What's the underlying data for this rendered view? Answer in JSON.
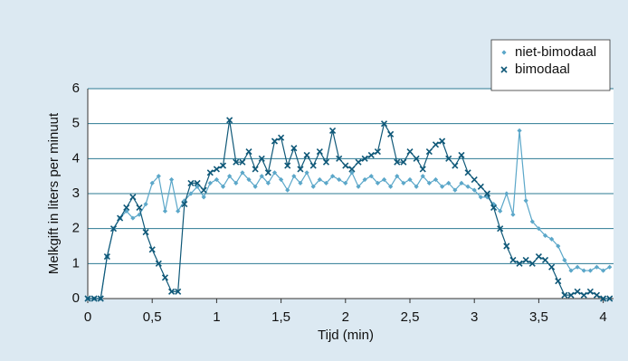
{
  "chart_data": {
    "type": "line",
    "x_label": "Tijd (min)",
    "y_label": "Melkgift in liters per minuut",
    "x": [
      0,
      0.05,
      0.1,
      0.15,
      0.2,
      0.25,
      0.3,
      0.35,
      0.4,
      0.45,
      0.5,
      0.55,
      0.6,
      0.65,
      0.7,
      0.75,
      0.8,
      0.85,
      0.9,
      0.95,
      1,
      1.05,
      1.1,
      1.15,
      1.2,
      1.25,
      1.3,
      1.35,
      1.4,
      1.45,
      1.5,
      1.55,
      1.6,
      1.65,
      1.7,
      1.75,
      1.8,
      1.85,
      1.9,
      1.95,
      2,
      2.05,
      2.1,
      2.15,
      2.2,
      2.25,
      2.3,
      2.35,
      2.4,
      2.45,
      2.5,
      2.55,
      2.6,
      2.65,
      2.7,
      2.75,
      2.8,
      2.85,
      2.9,
      2.95,
      3,
      3.05,
      3.1,
      3.15,
      3.2,
      3.25,
      3.3,
      3.35,
      3.4,
      3.45,
      3.5,
      3.55,
      3.6,
      3.65,
      3.7,
      3.75,
      3.8,
      3.85,
      3.9,
      3.95,
      4,
      4.05
    ],
    "series": [
      {
        "name": "niet-bimodaal",
        "color": "#5ba7c9",
        "marker": "diamond",
        "values": [
          0,
          0,
          0,
          1.2,
          2.0,
          2.3,
          2.5,
          2.3,
          2.4,
          2.7,
          3.3,
          3.5,
          2.5,
          3.4,
          2.5,
          2.8,
          3.0,
          3.2,
          2.9,
          3.3,
          3.4,
          3.2,
          3.5,
          3.3,
          3.6,
          3.4,
          3.2,
          3.5,
          3.3,
          3.6,
          3.4,
          3.1,
          3.5,
          3.3,
          3.6,
          3.2,
          3.4,
          3.3,
          3.5,
          3.4,
          3.3,
          3.6,
          3.2,
          3.4,
          3.5,
          3.3,
          3.4,
          3.2,
          3.5,
          3.3,
          3.4,
          3.2,
          3.5,
          3.3,
          3.4,
          3.2,
          3.3,
          3.1,
          3.3,
          3.2,
          3.1,
          2.9,
          2.9,
          2.7,
          2.5,
          3.0,
          2.4,
          4.8,
          2.8,
          2.2,
          2.0,
          1.8,
          1.7,
          1.5,
          1.1,
          0.8,
          0.9,
          0.8,
          0.8,
          0.9,
          0.8,
          0.9
        ]
      },
      {
        "name": "bimodaal",
        "color": "#0f5878",
        "marker": "x",
        "values": [
          0,
          0,
          0,
          1.2,
          2.0,
          2.3,
          2.6,
          2.9,
          2.6,
          1.9,
          1.4,
          1.0,
          0.6,
          0.2,
          0.2,
          2.7,
          3.3,
          3.3,
          3.1,
          3.6,
          3.7,
          3.8,
          5.1,
          3.9,
          3.9,
          4.2,
          3.7,
          4.0,
          3.6,
          4.5,
          4.6,
          3.8,
          4.3,
          3.7,
          4.1,
          3.8,
          4.2,
          3.9,
          4.8,
          4.0,
          3.8,
          3.7,
          3.9,
          4.0,
          4.1,
          4.2,
          5.0,
          4.7,
          3.9,
          3.9,
          4.2,
          4.0,
          3.7,
          4.2,
          4.4,
          4.5,
          4.0,
          3.8,
          4.1,
          3.6,
          3.4,
          3.2,
          3.0,
          2.6,
          2.0,
          1.5,
          1.1,
          1.0,
          1.1,
          1.0,
          1.2,
          1.1,
          0.9,
          0.5,
          0.1,
          0.1,
          0.2,
          0.1,
          0.2,
          0.1,
          0,
          0
        ]
      }
    ],
    "xlim": [
      0,
      4.08
    ],
    "ylim": [
      0,
      6
    ],
    "xticks": [
      0,
      {
        "value": 0.5,
        "label": "0,5"
      },
      1,
      {
        "value": 1.5,
        "label": "1,5"
      },
      2,
      {
        "value": 2.5,
        "label": "2,5"
      },
      3,
      {
        "value": 3.5,
        "label": "3,5"
      },
      4
    ],
    "yticks": [
      0,
      1,
      2,
      3,
      4,
      5,
      6
    ],
    "grid": true,
    "grid_color": "#2b7a93",
    "legend": "top-right"
  }
}
